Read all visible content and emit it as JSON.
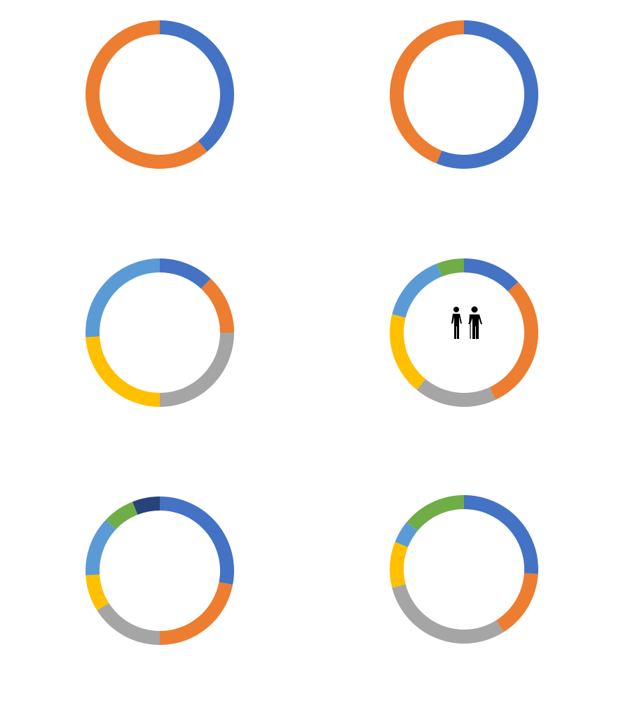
{
  "chart_data": [
    {
      "type": "donut",
      "values": [
        39,
        61
      ],
      "colors": [
        "#4472c4",
        "#ed7d31"
      ]
    },
    {
      "type": "donut",
      "values": [
        56,
        44
      ],
      "colors": [
        "#4472c4",
        "#ed7d31"
      ]
    },
    {
      "type": "donut",
      "values": [
        12,
        13,
        25,
        24,
        26
      ],
      "colors": [
        "#4472c4",
        "#ed7d31",
        "#a5a5a5",
        "#ffc000",
        "#5b9bd5"
      ]
    },
    {
      "type": "donut",
      "values": [
        13,
        30,
        18,
        18,
        15,
        6
      ],
      "colors": [
        "#4472c4",
        "#ed7d31",
        "#a5a5a5",
        "#ffc000",
        "#5b9bd5",
        "#70ad47"
      ]
    },
    {
      "type": "donut",
      "values": [
        28,
        22,
        16,
        8,
        13,
        7,
        6
      ],
      "colors": [
        "#4472c4",
        "#ed7d31",
        "#a5a5a5",
        "#ffc000",
        "#5b9bd5",
        "#70ad47",
        "#264478"
      ]
    },
    {
      "type": "donut",
      "values": [
        26,
        15,
        30,
        10,
        5,
        14
      ],
      "colors": [
        "#4472c4",
        "#ed7d31",
        "#a5a5a5",
        "#ffc000",
        "#5b9bd5",
        "#70ad47"
      ]
    }
  ]
}
